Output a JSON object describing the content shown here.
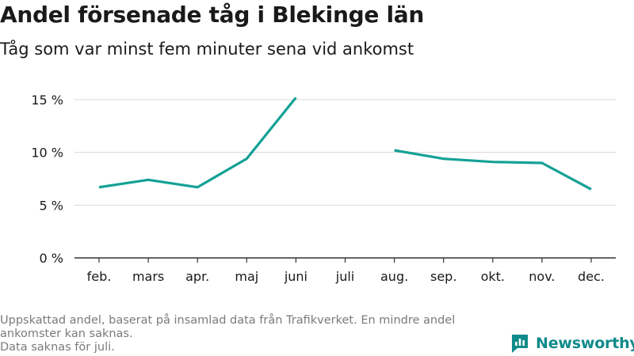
{
  "header": {
    "title": "Andel försenade tåg i Blekinge län",
    "subtitle": "Tåg som var minst fem minuter sena vid ankomst"
  },
  "footnote": {
    "lines": [
      "Uppskattad andel, baserat på insamlad data från Trafikverket. En mindre andel ankomster kan saknas.",
      "Data saknas för juli."
    ]
  },
  "brand": {
    "name": "Newsworthy",
    "icon": "bar-chart-bubble-icon",
    "color": "#0f8a8a"
  },
  "chart_data": {
    "type": "line",
    "title": "Andel försenade tåg i Blekinge län",
    "subtitle": "Tåg som var minst fem minuter sena vid ankomst",
    "categories": [
      "feb.",
      "mars",
      "apr.",
      "maj",
      "juni",
      "juli",
      "aug.",
      "sep.",
      "okt.",
      "nov.",
      "dec."
    ],
    "series": [
      {
        "values": [
          6.7,
          7.4,
          6.7,
          9.4,
          15.2,
          null,
          10.2,
          9.4,
          9.1,
          9.0,
          6.5
        ],
        "color": "#14a195"
      }
    ],
    "ylim": [
      0,
      15
    ],
    "yticks": [
      0,
      5,
      10,
      15
    ],
    "ytick_labels": [
      "0 %",
      "5 %",
      "10 %",
      "15 %"
    ],
    "grid": true,
    "legend": "none"
  }
}
